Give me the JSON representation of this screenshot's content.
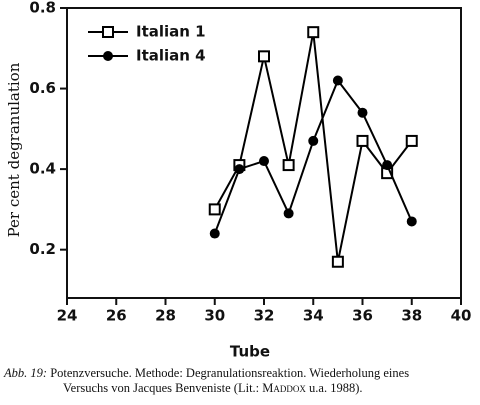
{
  "chart_data": {
    "type": "line",
    "x_label": "Tube",
    "y_label": "Per cent degranulation",
    "xlim": [
      24,
      40
    ],
    "xticks": [
      24,
      26,
      28,
      30,
      32,
      34,
      36,
      38,
      40
    ],
    "ylim": [
      0.08,
      0.8
    ],
    "yticks": [
      0.2,
      0.4,
      0.6,
      0.8
    ],
    "legend": "upper left",
    "series": [
      {
        "name": "Italian 1",
        "color": "#000000",
        "marker": "square-open",
        "x": [
          30,
          31,
          32,
          33,
          34,
          35,
          36,
          37,
          38
        ],
        "values": [
          0.3,
          0.41,
          0.68,
          0.41,
          0.74,
          0.17,
          0.47,
          0.39,
          0.47
        ]
      },
      {
        "name": "Italian 4",
        "color": "#000000",
        "marker": "circle-filled",
        "x": [
          30,
          31,
          32,
          33,
          34,
          35,
          36,
          37,
          38
        ],
        "values": [
          0.24,
          0.4,
          0.42,
          0.29,
          0.47,
          0.62,
          0.54,
          0.41,
          0.27
        ]
      }
    ]
  },
  "caption": {
    "label": "Abb. 19:",
    "line1": "Potenzversuche. Methode: Degranulationsreaktion. Wiederholung eines",
    "line2a": "Versuchs von Jacques Benveniste (Lit.:",
    "line2b": "Maddox",
    "line2c": "u.a. 1988)."
  }
}
